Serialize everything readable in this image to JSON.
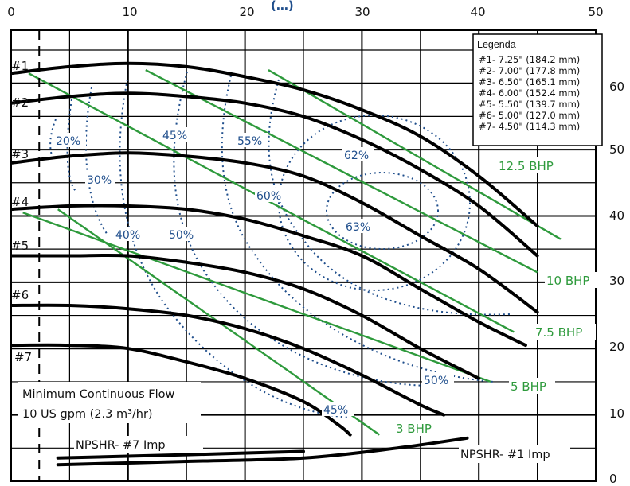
{
  "chart_data": {
    "type": "line",
    "x_ticks": [
      "0",
      "10",
      "20",
      "30",
      "40",
      "50"
    ],
    "y_ticks": [
      "60",
      "50",
      "40",
      "30",
      "20",
      "10",
      "0"
    ],
    "xlim": [
      0,
      52.5
    ],
    "ylim": [
      0,
      68
    ],
    "top_partial_text": "(…)",
    "legend": {
      "title": "Legenda",
      "entries": [
        "#1- 7.25\" (184.2 mm)",
        "#2- 7.00\" (177.8 mm)",
        "#3- 6.50\" (165.1 mm)",
        "#4- 6.00\" (152.4 mm)",
        "#5- 5.50\" (139.7 mm)",
        "#6- 5.00\" (127.0 mm)",
        "#7- 4.50\" (114.3 mm)"
      ]
    },
    "impeller_curves": [
      {
        "name": "#1",
        "points": [
          [
            0,
            61.5
          ],
          [
            5,
            62.5
          ],
          [
            10,
            63
          ],
          [
            15,
            62.5
          ],
          [
            20,
            61
          ],
          [
            25,
            59
          ],
          [
            30,
            56
          ],
          [
            35,
            52
          ],
          [
            40,
            46
          ],
          [
            45,
            38.5
          ]
        ]
      },
      {
        "name": "#2",
        "points": [
          [
            0,
            57
          ],
          [
            5,
            58
          ],
          [
            10,
            58.5
          ],
          [
            15,
            58
          ],
          [
            20,
            57
          ],
          [
            25,
            55
          ],
          [
            30,
            51.5
          ],
          [
            35,
            47
          ],
          [
            40,
            41.5
          ],
          [
            45,
            34
          ]
        ]
      },
      {
        "name": "#3",
        "points": [
          [
            0,
            48
          ],
          [
            5,
            49
          ],
          [
            10,
            49.5
          ],
          [
            15,
            49
          ],
          [
            20,
            48
          ],
          [
            25,
            46
          ],
          [
            30,
            42
          ],
          [
            35,
            37
          ],
          [
            40,
            32
          ],
          [
            45,
            25.5
          ]
        ]
      },
      {
        "name": "#4",
        "points": [
          [
            0,
            41
          ],
          [
            5,
            41.5
          ],
          [
            10,
            41.5
          ],
          [
            15,
            41
          ],
          [
            20,
            39.5
          ],
          [
            25,
            37
          ],
          [
            30,
            34
          ],
          [
            35,
            29
          ],
          [
            40,
            24
          ],
          [
            44,
            20.5
          ]
        ]
      },
      {
        "name": "#5",
        "points": [
          [
            0,
            34
          ],
          [
            5,
            34
          ],
          [
            10,
            34
          ],
          [
            15,
            33
          ],
          [
            20,
            31.5
          ],
          [
            25,
            29
          ],
          [
            30,
            25
          ],
          [
            35,
            20
          ],
          [
            40,
            15.5
          ]
        ]
      },
      {
        "name": "#6",
        "points": [
          [
            0,
            26.5
          ],
          [
            5,
            26.5
          ],
          [
            10,
            26
          ],
          [
            15,
            25
          ],
          [
            20,
            23
          ],
          [
            25,
            20
          ],
          [
            30,
            16
          ],
          [
            35,
            11.5
          ],
          [
            37,
            10
          ]
        ]
      },
      {
        "name": "#7",
        "points": [
          [
            0,
            20.5
          ],
          [
            5,
            20.5
          ],
          [
            10,
            20
          ],
          [
            15,
            18
          ],
          [
            20,
            15.5
          ],
          [
            25,
            12
          ],
          [
            28,
            8.5
          ],
          [
            29,
            7
          ]
        ]
      }
    ],
    "bhp_lines": [
      {
        "label": "12.5 BHP",
        "points": [
          [
            22,
            62
          ],
          [
            47,
            36.5
          ]
        ]
      },
      {
        "label": "10 BHP",
        "points": [
          [
            11.5,
            62
          ],
          [
            45,
            31.5
          ]
        ]
      },
      {
        "label": "7.5 BHP",
        "points": [
          [
            1.5,
            61.5
          ],
          [
            43,
            22.5
          ]
        ]
      },
      {
        "label": "5 BHP",
        "points": [
          [
            1,
            40.5
          ],
          [
            41,
            15
          ]
        ]
      },
      {
        "label": "3 BHP",
        "points": [
          [
            4,
            41
          ],
          [
            31.5,
            7
          ]
        ]
      }
    ],
    "efficiency_labels": [
      "20%",
      "30%",
      "40%",
      "45%",
      "50%",
      "55%",
      "60%",
      "62%",
      "63%",
      "50%",
      "45%"
    ],
    "npshr": [
      {
        "label": "NPSHR- #7 Imp",
        "points": [
          [
            4,
            3.5
          ],
          [
            15,
            4
          ],
          [
            25,
            4.5
          ]
        ]
      },
      {
        "label": "NPSHR- #1 Imp",
        "points": [
          [
            4,
            2.5
          ],
          [
            15,
            3
          ],
          [
            25,
            3.5
          ],
          [
            33,
            5
          ],
          [
            39,
            6.5
          ]
        ]
      }
    ],
    "notes": {
      "line1": "Minimum Continuous Flow",
      "line2": "10 US gpm (2.3 m³/hr)"
    },
    "min_flow_x": 2.4,
    "grid": true,
    "colors": {
      "impeller": "#000000",
      "bhp": "#2e9a3c",
      "efficiency": "#1f4e8c",
      "grid": "#000000"
    }
  }
}
